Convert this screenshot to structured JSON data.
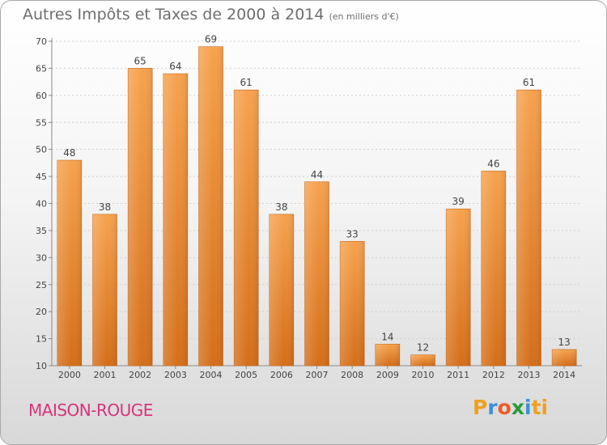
{
  "brand": {
    "letters": [
      "P",
      "r",
      "o",
      "x",
      "i",
      "t",
      "i"
    ]
  },
  "place_name": "MAISON-ROUGE",
  "colors": {
    "bar_light": "#f6a24e",
    "bar_dark": "#d46e19",
    "place": "#d7347c"
  },
  "chart_data": {
    "type": "bar",
    "title": "Autres Impôts et Taxes de 2000 à 2014",
    "subtitle": "(en milliers d'€)",
    "categories": [
      "2000",
      "2001",
      "2002",
      "2003",
      "2004",
      "2005",
      "2006",
      "2007",
      "2008",
      "2009",
      "2010",
      "2011",
      "2012",
      "2013",
      "2014"
    ],
    "values": [
      48,
      38,
      65,
      64,
      69,
      61,
      38,
      44,
      33,
      14,
      12,
      39,
      46,
      61,
      13
    ],
    "ylim": [
      10,
      70
    ],
    "yticks": [
      10,
      15,
      20,
      25,
      30,
      35,
      40,
      45,
      50,
      55,
      60,
      65,
      70
    ],
    "grid": true,
    "xlabel": "",
    "ylabel": ""
  }
}
